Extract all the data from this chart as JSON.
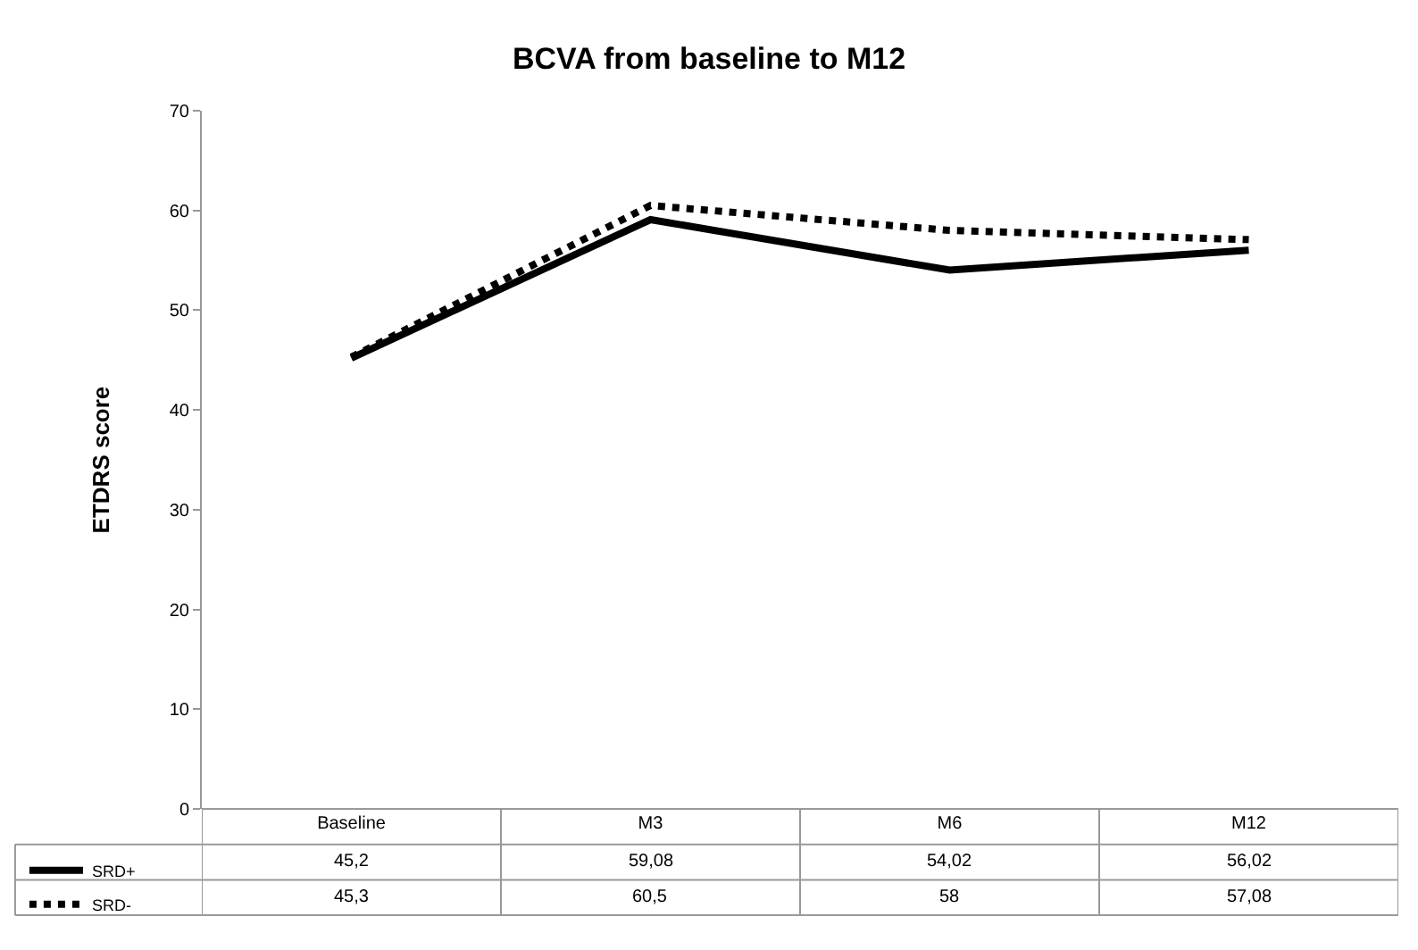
{
  "chart_data": {
    "type": "line",
    "title": "BCVA from baseline to M12",
    "ylabel": "ETDRS score",
    "categories": [
      "Baseline",
      "M3",
      "M6",
      "M12"
    ],
    "series": [
      {
        "name": "SRD+",
        "color": "#000000",
        "line_style": "solid",
        "values": [
          45.2,
          59.08,
          54.02,
          56.02
        ],
        "value_labels": [
          "45,2",
          "59,08",
          "54,02",
          "56,02"
        ]
      },
      {
        "name": "SRD-",
        "color": "#000000",
        "line_style": "dotted",
        "values": [
          45.3,
          60.5,
          58,
          57.08
        ],
        "value_labels": [
          "45,3",
          "60,5",
          "58",
          "57,08"
        ]
      }
    ],
    "ylim": [
      0,
      70
    ],
    "yticks": [
      0,
      10,
      20,
      30,
      40,
      50,
      60,
      70
    ],
    "marker": "none",
    "legend": "bottom left"
  }
}
